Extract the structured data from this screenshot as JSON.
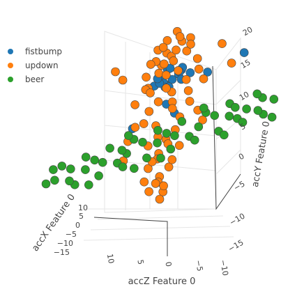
{
  "chart_data": {
    "type": "scatter3d",
    "axes": {
      "x": {
        "label": "accX Feature 0",
        "ticks": [
          10,
          5,
          0,
          -5,
          -10,
          -15
        ],
        "tick_labels": [
          "10",
          "5",
          "0",
          "−5",
          "−10",
          "−15"
        ]
      },
      "y": {
        "label": "accY Feature 0",
        "ticks": [
          20,
          15,
          10,
          5,
          0,
          -5,
          -10,
          -15
        ],
        "tick_labels": [
          "20",
          "15",
          "10",
          "5",
          "0",
          "−5",
          "−10",
          "−15"
        ]
      },
      "z": {
        "label": "accZ Feature 0",
        "ticks": [
          10,
          5,
          0,
          -5,
          -10
        ],
        "tick_labels": [
          "10",
          "5",
          "0",
          "−5",
          "−10"
        ]
      }
    },
    "grid": true,
    "legend": {
      "placement": "top-left"
    },
    "series": [
      {
        "name": "fistbump",
        "color": "#1f77b4",
        "points": [
          [
            0,
            10,
            0
          ],
          [
            1,
            11,
            1
          ],
          [
            -1,
            10.5,
            0
          ],
          [
            0.5,
            9.5,
            1
          ],
          [
            2,
            10,
            -1
          ],
          [
            -2,
            11,
            1
          ],
          [
            1,
            12,
            0
          ],
          [
            0,
            9,
            2
          ],
          [
            -1,
            11.5,
            -1
          ],
          [
            3,
            10,
            0
          ],
          [
            -3,
            10,
            0
          ],
          [
            1,
            10,
            2
          ],
          [
            0,
            11,
            -2
          ],
          [
            2,
            11,
            1
          ],
          [
            -1,
            9.5,
            -1
          ],
          [
            0,
            12,
            1
          ],
          [
            1,
            9,
            -1
          ],
          [
            -6,
            9,
            0
          ],
          [
            -12,
            10,
            0
          ],
          [
            0,
            6,
            1
          ],
          [
            -1,
            4,
            0
          ],
          [
            6,
            4,
            0
          ]
        ]
      },
      {
        "name": "updown",
        "color": "#ff7f0e",
        "points": [
          [
            0,
            18,
            0
          ],
          [
            1,
            17,
            1
          ],
          [
            -1,
            16,
            0
          ],
          [
            2,
            15,
            -1
          ],
          [
            0,
            14,
            1
          ],
          [
            1,
            13,
            2
          ],
          [
            -2,
            14,
            0
          ],
          [
            3,
            12,
            -1
          ],
          [
            0,
            11,
            2
          ],
          [
            4,
            10,
            0
          ],
          [
            -3,
            9,
            1
          ],
          [
            1,
            8,
            -2
          ],
          [
            2,
            7,
            0
          ],
          [
            -1,
            6,
            1
          ],
          [
            0,
            5,
            -1
          ],
          [
            3,
            4,
            2
          ],
          [
            -2,
            3,
            0
          ],
          [
            1,
            2,
            1
          ],
          [
            2,
            1,
            -1
          ],
          [
            0,
            0,
            0
          ],
          [
            -1,
            -1,
            1
          ],
          [
            1,
            -2,
            0
          ],
          [
            0,
            -3,
            2
          ],
          [
            2,
            -4,
            1
          ],
          [
            -1,
            -5,
            0
          ],
          [
            1,
            -6,
            -1
          ],
          [
            0,
            -7,
            1
          ],
          [
            2,
            -8,
            0
          ],
          [
            -1,
            -9,
            1
          ],
          [
            0,
            -10,
            0
          ],
          [
            4,
            12,
            1
          ],
          [
            -4,
            12,
            0
          ],
          [
            5,
            10,
            -1
          ],
          [
            -5,
            10,
            1
          ],
          [
            3,
            16,
            0
          ],
          [
            -3,
            16,
            1
          ],
          [
            6,
            8,
            0
          ],
          [
            -6,
            8,
            1
          ],
          [
            10,
            15,
            0
          ],
          [
            -10,
            9,
            0
          ],
          [
            8,
            13,
            1
          ],
          [
            -8,
            13,
            0
          ],
          [
            2,
            14,
            2
          ],
          [
            -2,
            15,
            -1
          ],
          [
            1,
            16,
            2
          ],
          [
            0,
            17,
            -1
          ],
          [
            3,
            9,
            1
          ],
          [
            -3,
            7,
            0
          ],
          [
            4,
            6,
            -1
          ],
          [
            -4,
            5,
            1
          ],
          [
            2,
            3,
            0
          ],
          [
            -2,
            1,
            1
          ],
          [
            3,
            0,
            0
          ],
          [
            -3,
            -2,
            1
          ],
          [
            2,
            -3,
            0
          ],
          [
            -2,
            -4,
            1
          ],
          [
            1,
            -7,
            0
          ],
          [
            -1,
            -8,
            1
          ],
          [
            3,
            -6,
            0
          ],
          [
            5,
            4,
            1
          ],
          [
            -5,
            3,
            0
          ],
          [
            6,
            2,
            1
          ],
          [
            -6,
            1,
            0
          ],
          [
            7,
            -1,
            0
          ],
          [
            0,
            13,
            3
          ],
          [
            1,
            15,
            -2
          ],
          [
            -1,
            13,
            2
          ],
          [
            2,
            9,
            -2
          ],
          [
            -2,
            11,
            2
          ],
          [
            4,
            14,
            0
          ]
        ]
      },
      {
        "name": "beer",
        "color": "#2ca02c",
        "points": [
          [
            -18,
            0,
            0
          ],
          [
            -16,
            1,
            0
          ],
          [
            -14,
            0,
            1
          ],
          [
            -12,
            -1,
            0
          ],
          [
            -10,
            0,
            -1
          ],
          [
            -8,
            1,
            0
          ],
          [
            -6,
            0,
            1
          ],
          [
            -4,
            -1,
            0
          ],
          [
            -2,
            0,
            1
          ],
          [
            0,
            1,
            0
          ],
          [
            2,
            0,
            -1
          ],
          [
            4,
            1,
            0
          ],
          [
            6,
            0,
            1
          ],
          [
            8,
            -1,
            0
          ],
          [
            10,
            0,
            1
          ],
          [
            12,
            1,
            0
          ],
          [
            14,
            0,
            -1
          ],
          [
            16,
            1,
            0
          ],
          [
            18,
            0,
            1
          ],
          [
            20,
            0,
            0
          ],
          [
            -17,
            -2,
            1
          ],
          [
            -15,
            2,
            0
          ],
          [
            -13,
            -2,
            0
          ],
          [
            -11,
            2,
            1
          ],
          [
            -9,
            -2,
            0
          ],
          [
            -7,
            2,
            1
          ],
          [
            -5,
            -2,
            0
          ],
          [
            -3,
            2,
            1
          ],
          [
            -1,
            -2,
            0
          ],
          [
            1,
            2,
            1
          ],
          [
            3,
            -2,
            0
          ],
          [
            5,
            2,
            1
          ],
          [
            7,
            -2,
            0
          ],
          [
            9,
            2,
            1
          ],
          [
            11,
            -2,
            0
          ],
          [
            13,
            2,
            1
          ],
          [
            15,
            -2,
            0
          ],
          [
            17,
            2,
            1
          ],
          [
            -10,
            -3,
            0
          ],
          [
            0,
            -3,
            1
          ],
          [
            5,
            -3,
            0
          ],
          [
            12,
            -3,
            1
          ],
          [
            -6,
            3,
            0
          ],
          [
            6,
            3,
            1
          ],
          [
            16,
            -1,
            0
          ],
          [
            -16,
            -1,
            1
          ],
          [
            -18,
            -3,
            0
          ],
          [
            19,
            2,
            0
          ],
          [
            -12,
            1,
            1
          ],
          [
            8,
            1,
            -1
          ]
        ]
      }
    ]
  }
}
